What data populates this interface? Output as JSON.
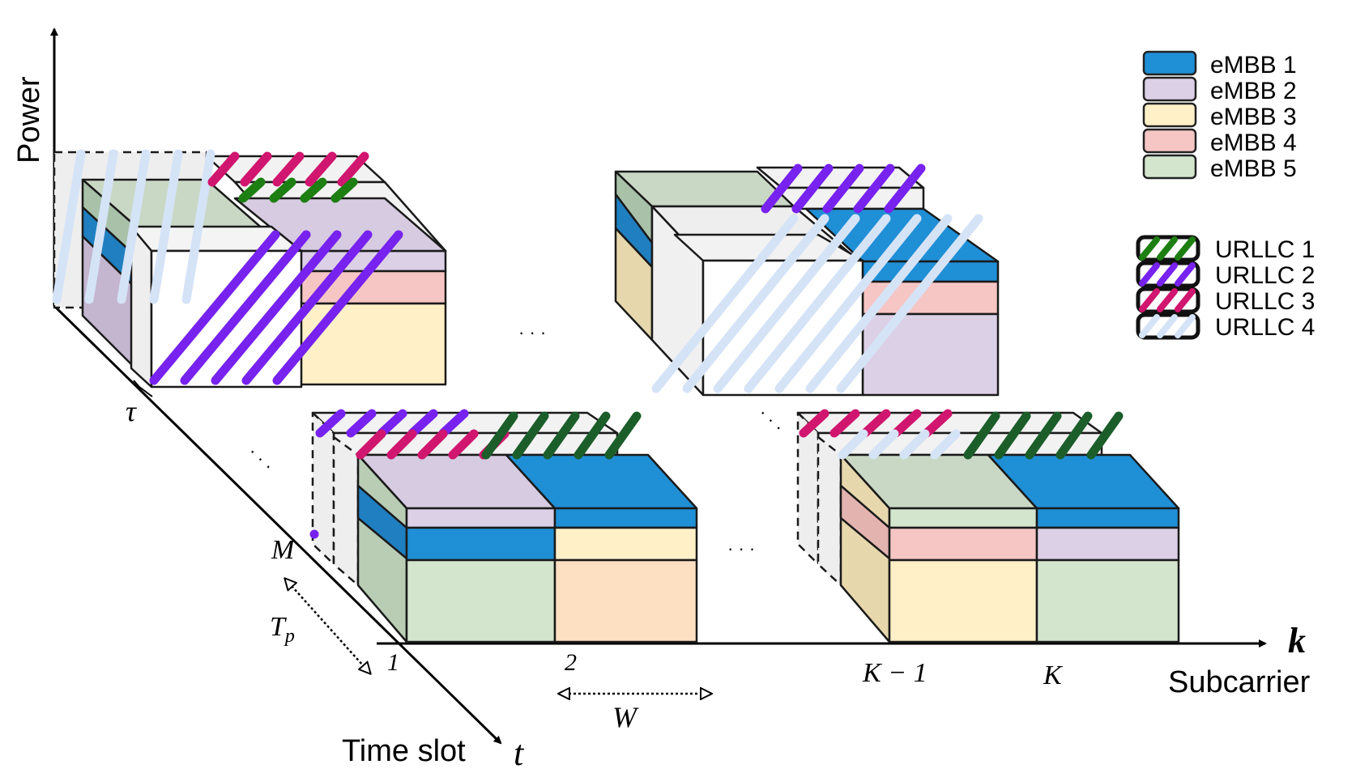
{
  "axes": {
    "power_label": "Power",
    "subcarrier_label": "Subcarrier",
    "subcarrier_var": "k",
    "time_label": "Time slot",
    "time_var": "t"
  },
  "annotations": {
    "tau": "τ",
    "M": "M",
    "Tp": "T",
    "Tp_sub": "p",
    "W": "W",
    "tick_1": "1",
    "tick_2": "2",
    "tick_K_minus_1": "K − 1",
    "tick_K": "K",
    "ellipsis": "· · ·"
  },
  "legend": {
    "embb": [
      {
        "label": "eMBB 1",
        "color": "#1f8fd6"
      },
      {
        "label": "eMBB 2",
        "color": "#dcd0e6"
      },
      {
        "label": "eMBB 3",
        "color": "#fff0c8"
      },
      {
        "label": "eMBB 4",
        "color": "#f6c6c4"
      },
      {
        "label": "eMBB 5",
        "color": "#d3e6cd"
      }
    ],
    "urllc": [
      {
        "label": "URLLC 1",
        "color": "#1d7f12"
      },
      {
        "label": "URLLC 2",
        "color": "#7722ee"
      },
      {
        "label": "URLLC 3",
        "color": "#d0166f"
      },
      {
        "label": "URLLC 4",
        "color": "#d5e3f7"
      }
    ]
  },
  "colors": {
    "axis": "#000000",
    "outline": "#1a1a1a",
    "urllc1_dark": "#1b5e2a"
  }
}
